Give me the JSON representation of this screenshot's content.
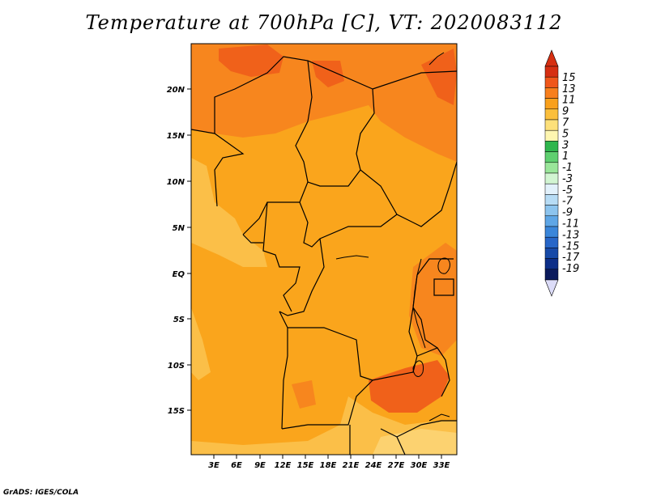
{
  "title": "Temperature at 700hPa [C], VT: 2020083112",
  "credit": "GrADS: IGES/COLA",
  "lat_ticks": [
    "20N",
    "15N",
    "10N",
    "5N",
    "EQ",
    "5S",
    "10S",
    "15S"
  ],
  "lon_ticks": [
    "3E",
    "6E",
    "9E",
    "12E",
    "15E",
    "18E",
    "21E",
    "24E",
    "27E",
    "30E",
    "33E"
  ],
  "colorbar": {
    "labels": [
      "15",
      "13",
      "11",
      "9",
      "7",
      "5",
      "3",
      "1",
      "-1",
      "-3",
      "-5",
      "-7",
      "-9",
      "-11",
      "-13",
      "-15",
      "-17",
      "-19"
    ],
    "colors": [
      "#d62f12",
      "#f0571a",
      "#f87f1c",
      "#f9a01c",
      "#fbbf3c",
      "#fde07a",
      "#fef6b0",
      "#2fb64d",
      "#5fd070",
      "#9ae69a",
      "#d2f5d2",
      "#e2f1fb",
      "#b7dcf5",
      "#8cc4ee",
      "#5ea6e6",
      "#3a86da",
      "#2766c8",
      "#174aa8",
      "#0c2e88",
      "#0a1a5c"
    ],
    "over_color": "#d62f12",
    "under_color": "#dcdcf8"
  },
  "map_colors": {
    "base": "#faa51c",
    "warm": "#f7861e",
    "hot": "#f0611a",
    "cool": "#fbbf48",
    "cooler": "#fcd270",
    "border": "#000000"
  }
}
